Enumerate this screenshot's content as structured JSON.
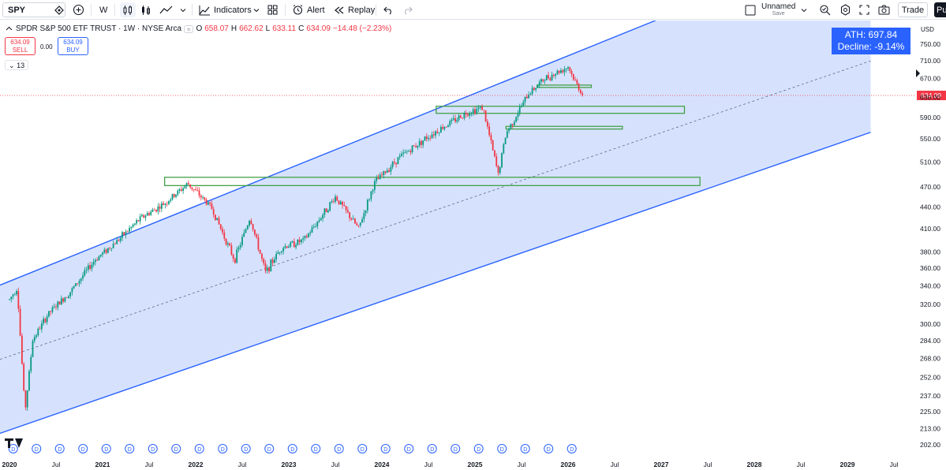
{
  "toolbar": {
    "symbol": "SPY",
    "interval": "W",
    "indicators_label": "Indicators",
    "alert_label": "Alert",
    "replay_label": "Replay",
    "layout_name": "Unnamed",
    "layout_status": "Save",
    "trade_label": "Trade",
    "publish_label": "Pu"
  },
  "legend": {
    "title": "SPDR S&P 500 ETF TRUST · 1W · NYSE Arca",
    "open_label": "O",
    "open": "658.07",
    "high_label": "H",
    "high": "662.62",
    "low_label": "L",
    "low": "633.11",
    "close_label": "C",
    "close": "634.09",
    "change": "−14.48 (−2.23%)"
  },
  "trading": {
    "sell_price": "634.09",
    "sell_label": "SELL",
    "spread": "0.00",
    "buy_price": "634.09",
    "buy_label": "BUY",
    "indicator_count": "13"
  },
  "annotation": {
    "ath": "ATH: 697.84",
    "decline": "Decline: -9.14%"
  },
  "price_axis": {
    "currency": "USD",
    "last_price": "634.09",
    "ticks": [
      "750.00",
      "710.00",
      "670.00",
      "630.00",
      "590.00",
      "550.00",
      "510.00",
      "470.00",
      "440.00",
      "410.00",
      "380.00",
      "360.00",
      "340.00",
      "320.00",
      "300.00",
      "284.00",
      "268.00",
      "252.00",
      "237.00",
      "225.00",
      "213.00",
      "202.00"
    ],
    "colors": {
      "last_price_bg": "#f23645"
    }
  },
  "time_axis": {
    "labels": [
      "2020",
      "Jul",
      "2021",
      "Jul",
      "2022",
      "Jul",
      "2023",
      "Jul",
      "2024",
      "Jul",
      "2025",
      "Jul",
      "2026",
      "Jul",
      "2027",
      "Jul",
      "2028",
      "Jul",
      "2029",
      "Jul"
    ],
    "dividend_marker": "D"
  },
  "chart_data": {
    "type": "candlestick",
    "symbol": "SPY",
    "interval": "1W",
    "y_scale": "log",
    "ylim": [
      202,
      760
    ],
    "last_close": 634.09,
    "ath": 697.84,
    "weekly_path": [
      [
        "2020-01",
        325
      ],
      [
        "2020-02",
        338
      ],
      [
        "2020-03",
        225
      ],
      [
        "2020-04",
        285
      ],
      [
        "2020-06",
        310
      ],
      [
        "2020-09",
        335
      ],
      [
        "2020-12",
        370
      ],
      [
        "2021-03",
        395
      ],
      [
        "2021-06",
        425
      ],
      [
        "2021-09",
        445
      ],
      [
        "2021-12",
        475
      ],
      [
        "2022-03",
        440
      ],
      [
        "2022-06",
        370
      ],
      [
        "2022-08",
        425
      ],
      [
        "2022-10",
        355
      ],
      [
        "2022-12",
        385
      ],
      [
        "2023-03",
        395
      ],
      [
        "2023-07",
        455
      ],
      [
        "2023-10",
        410
      ],
      [
        "2023-12",
        475
      ],
      [
        "2024-03",
        515
      ],
      [
        "2024-07",
        555
      ],
      [
        "2024-12",
        600
      ],
      [
        "2025-02",
        610
      ],
      [
        "2025-04",
        490
      ],
      [
        "2025-05",
        560
      ],
      [
        "2025-08",
        640
      ],
      [
        "2025-10",
        670
      ],
      [
        "2026-01",
        697
      ],
      [
        "2026-02",
        660
      ],
      [
        "2026-03",
        634
      ]
    ],
    "channel": {
      "upper": [
        [
          "2020-01",
          345
        ],
        [
          "2026-06",
          760
        ]
      ],
      "lower": [
        [
          "2020-01",
          212
        ],
        [
          "2029-04",
          562
        ]
      ],
      "middle": [
        [
          "2020-01",
          270
        ],
        [
          "2029-04",
          710
        ]
      ]
    },
    "zones": [
      {
        "from": "2021-09",
        "to": "2027-06",
        "low": 472,
        "high": 485
      },
      {
        "from": "2024-08",
        "to": "2027-04",
        "low": 598,
        "high": 612
      },
      {
        "from": "2025-05",
        "to": "2026-08",
        "low": 568,
        "high": 573
      },
      {
        "from": "2025-09",
        "to": "2026-04",
        "low": 652,
        "high": 656
      }
    ],
    "colors": {
      "up": "#089981",
      "down": "#f23645",
      "channel": "#2962ff",
      "fill": "#d4e0fd",
      "zone": "#43a047"
    }
  }
}
